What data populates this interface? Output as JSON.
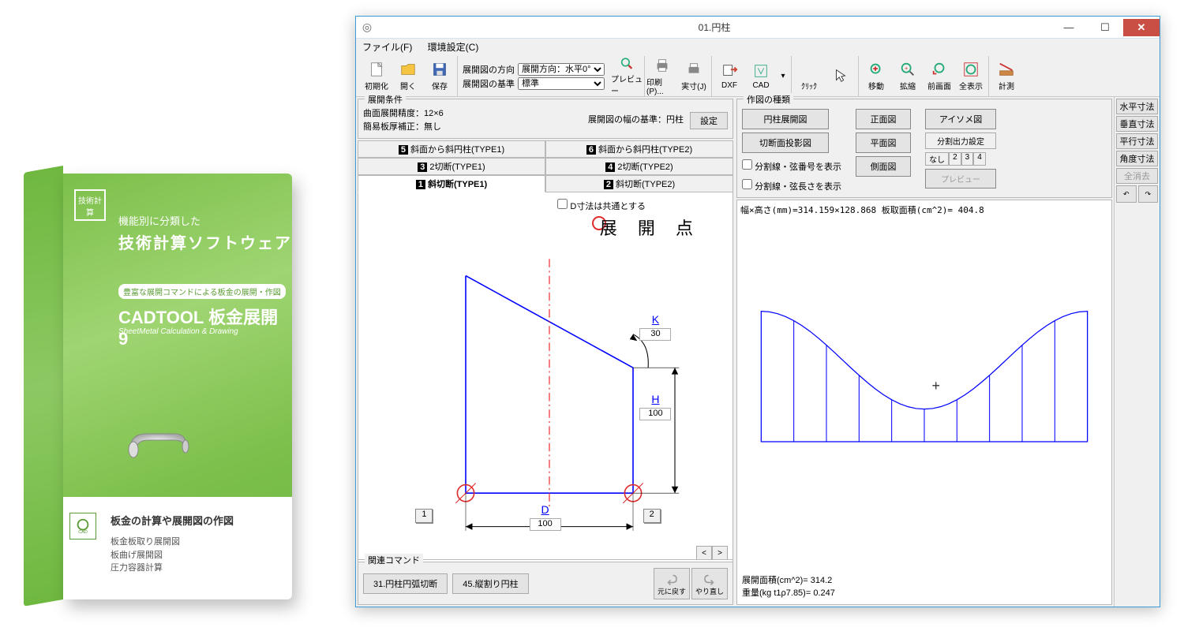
{
  "product_box": {
    "badge": "技術計算",
    "tag1": "機能別に分類した",
    "tag2": "技術計算ソフトウェア",
    "tag3": "豊富な展開コマンドによる板金の展開・作図",
    "title": "CADTOOL 板金展開 9",
    "subtitle": "SheetMetal Calculation & Drawing",
    "heading": "板金の計算や展開図の作図",
    "line1": "板金板取り展開図",
    "line2": "板曲げ展開図",
    "line3": "圧力容器計算",
    "logo_text": "CAD"
  },
  "window": {
    "title": "01.円柱",
    "menu": {
      "file": "ファイル(F)",
      "env": "環境設定(C)"
    },
    "toolbar": {
      "init": "初期化",
      "open": "開く",
      "save": "保存",
      "dir_label": "展開図の方向",
      "dir_value": "展開方向：水平0°",
      "ref_label": "展開図の基準",
      "ref_value": "標準",
      "preview": "プレビュー",
      "print": "印刷(P)...",
      "actual": "実寸(J)",
      "dxf": "DXF",
      "cad": "CAD",
      "click": "ｸﾘｯｸ",
      "move": "移動",
      "zoom": "拡縮",
      "prev": "前画面",
      "all": "全表示",
      "measure": "計測"
    },
    "conditions": {
      "title": "展開条件",
      "line1": "曲面展開精度：12×6",
      "line2": "簡易板厚補正：無し",
      "widthref": "展開図の幅の基準：円柱",
      "settei": "設定"
    },
    "tabs": {
      "t5": "斜面から斜円柱(TYPE1)",
      "t6": "斜面から斜円柱(TYPE2)",
      "t3": "2切断(TYPE1)",
      "t4": "2切断(TYPE2)",
      "t1": "斜切断(TYPE1)",
      "t2": "斜切断(TYPE2)",
      "chk_d": "D寸法は共通とする",
      "tenkai": "展 開 点"
    },
    "diagram": {
      "K": "K",
      "K_val": "30",
      "H": "H",
      "H_val": "100",
      "D": "D",
      "D_val": "100",
      "p1": "1",
      "p2": "2",
      "colors": {
        "outline": "#0000ff",
        "center": "#e11",
        "mark": "#e02a2a"
      }
    },
    "related": {
      "title": "関連コマンド",
      "r1": "31.円柱円弧切断",
      "r2": "45.縦割り円柱",
      "undo": "元に戻す",
      "redo": "やり直し"
    },
    "draw_types": {
      "title": "作図の種類",
      "b1": "円柱展開図",
      "b2": "切断面投影図",
      "b3": "正面図",
      "b4": "平面図",
      "b5": "側面図",
      "b6": "アイソメ図",
      "seg_label": "分割出力設定",
      "seg_none": "なし",
      "seg_prev": "プレビュー",
      "chk1": "分割線・弦番号を表示",
      "chk2": "分割線・弦長さを表示"
    },
    "canvas": {
      "info": "幅×高さ(mm)=314.159×128.868 板取面積(cm^2)= 404.8",
      "res1": "展開面積(cm^2)= 314.2",
      "res2": "重量(kg t1ρ7.85)= 0.247",
      "n_strips": 10
    },
    "rsidebar": {
      "hdims": "水平寸法",
      "vdims": "垂直寸法",
      "pdims": "平行寸法",
      "adims": "角度寸法",
      "clear": "全消去"
    }
  },
  "colors": {
    "titlebar_border": "#3a9bd8",
    "close_btn": "#c94f44",
    "shape": "#0000ff"
  }
}
